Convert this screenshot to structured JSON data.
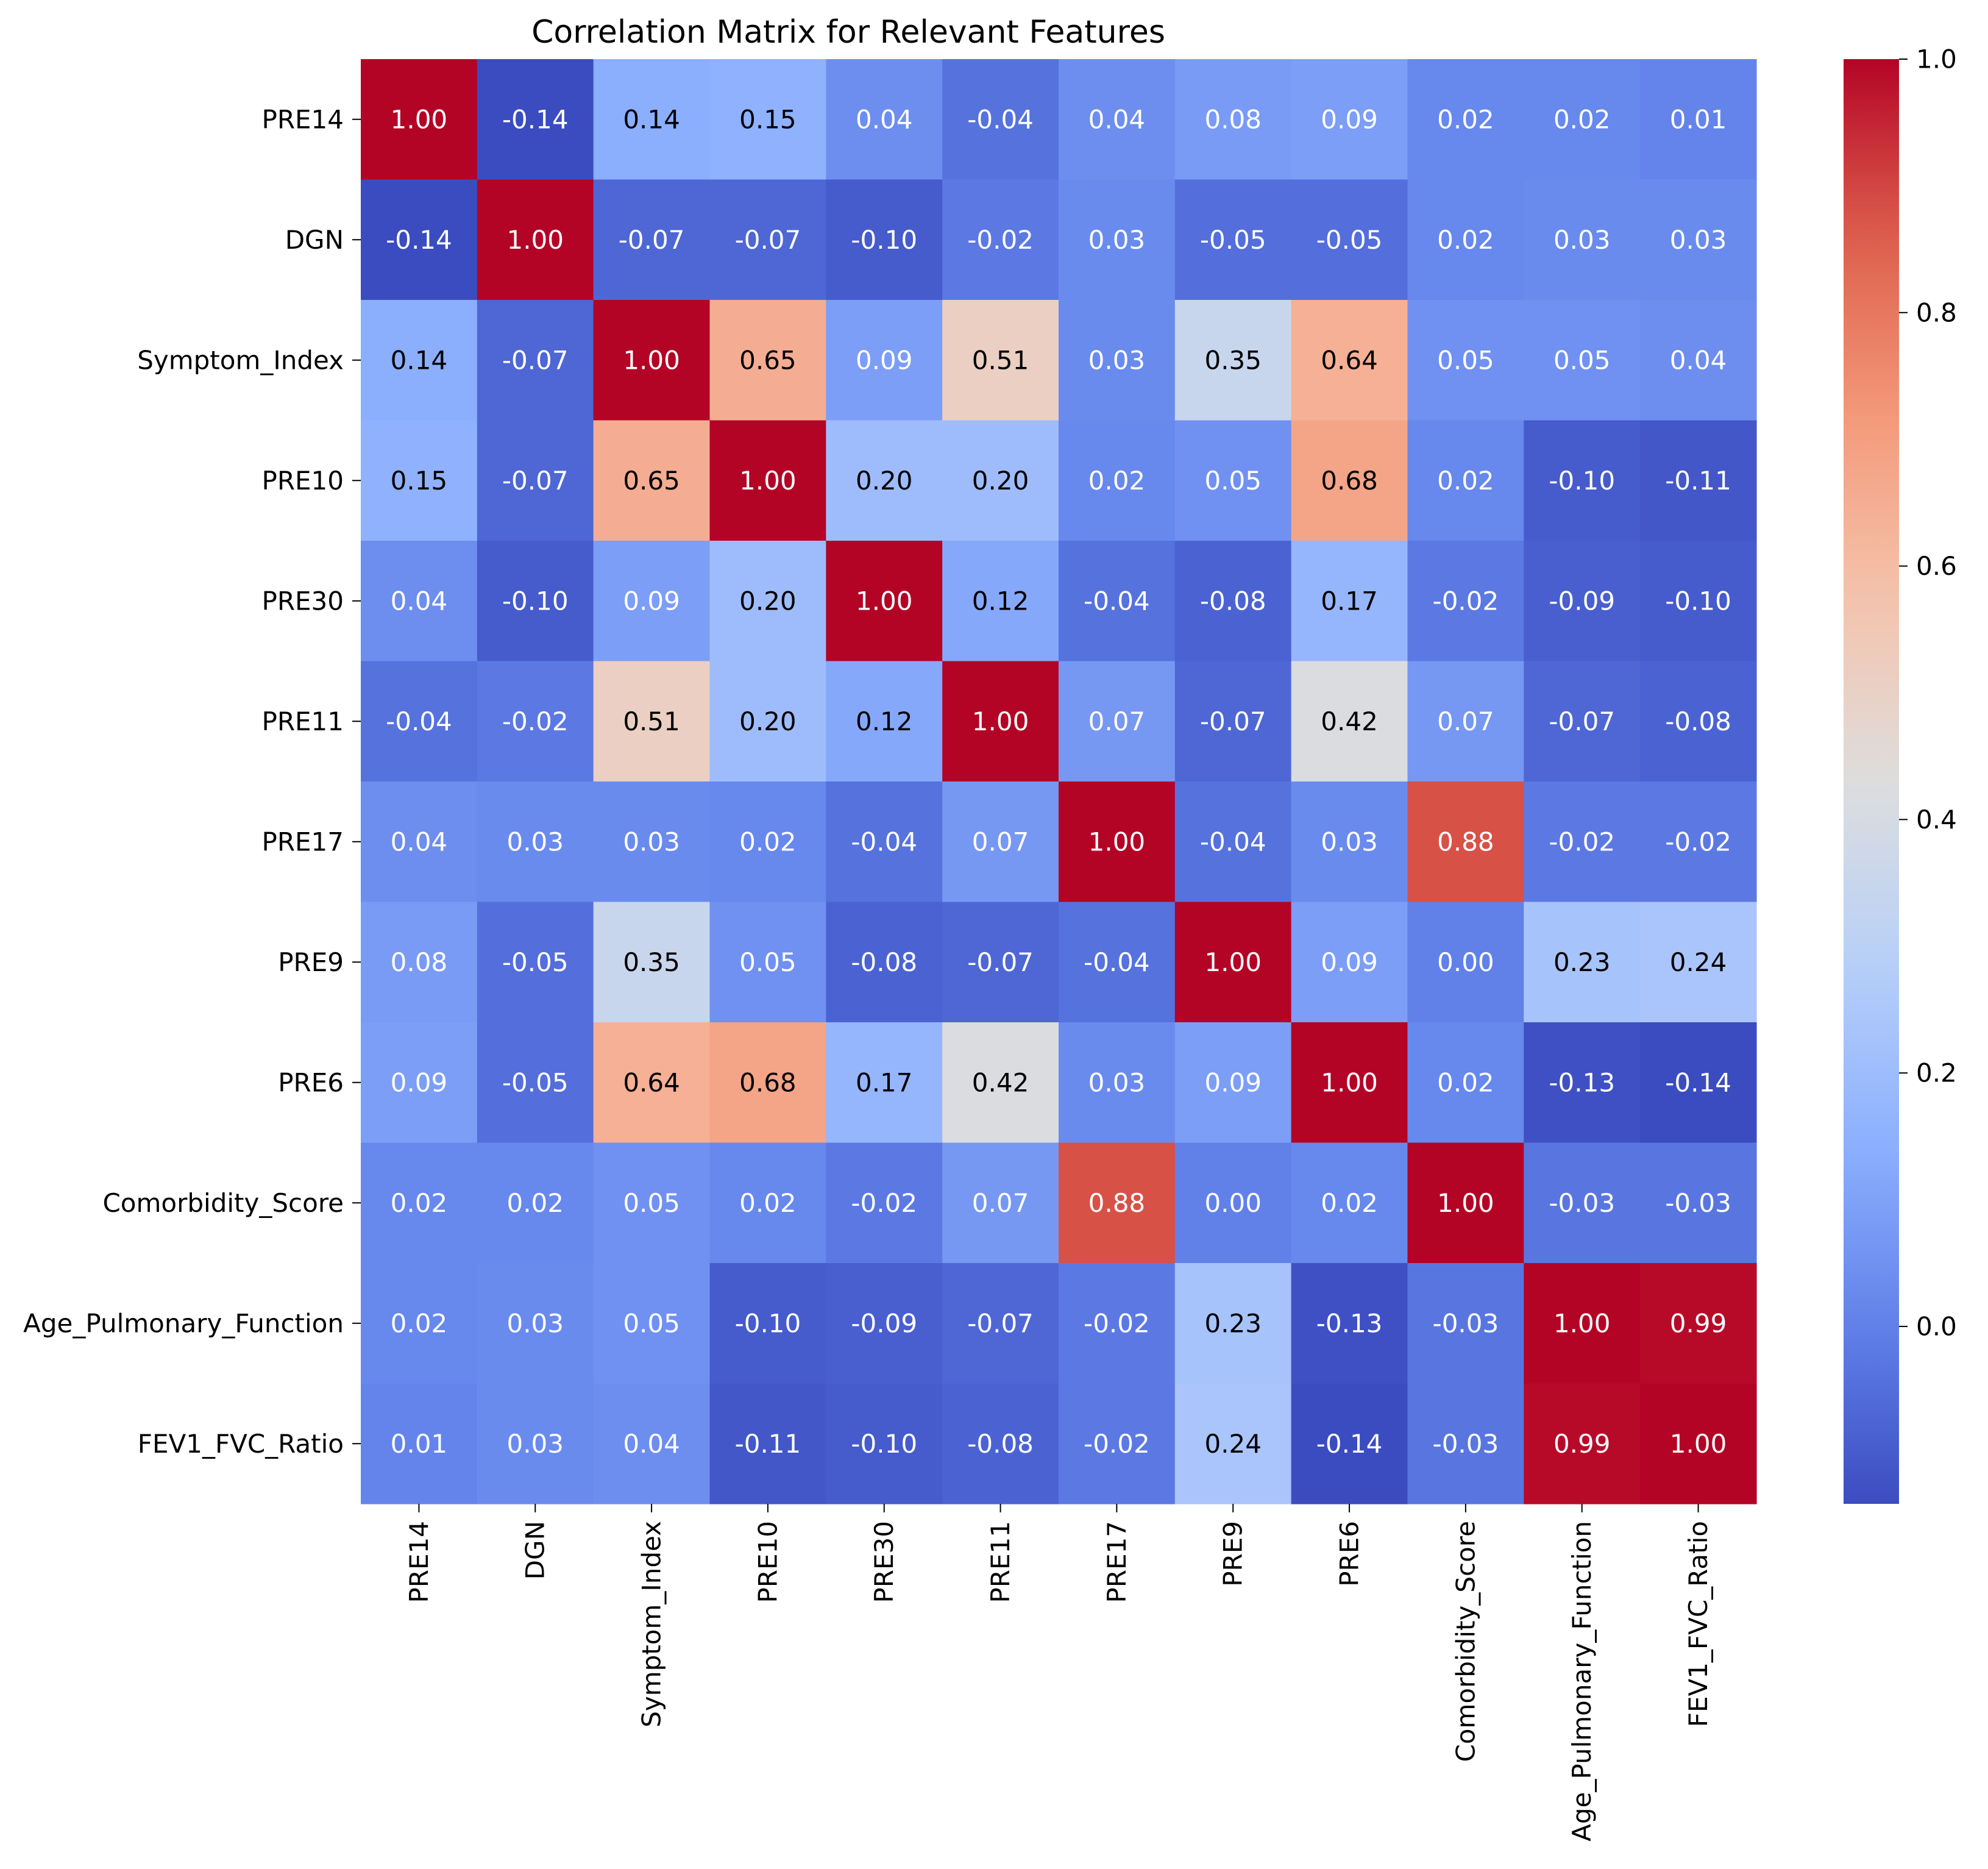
{
  "chart_data": {
    "type": "heatmap",
    "title": "Correlation Matrix for Relevant Features",
    "xlabel": "",
    "ylabel": "",
    "rows": [
      "PRE14",
      "DGN",
      "Symptom_Index",
      "PRE10",
      "PRE30",
      "PRE11",
      "PRE17",
      "PRE9",
      "PRE6",
      "Comorbidity_Score",
      "Age_Pulmonary_Function",
      "FEV1_FVC_Ratio"
    ],
    "columns": [
      "PRE14",
      "DGN",
      "Symptom_Index",
      "PRE10",
      "PRE30",
      "PRE11",
      "PRE17",
      "PRE9",
      "PRE6",
      "Comorbidity_Score",
      "Age_Pulmonary_Function",
      "FEV1_FVC_Ratio"
    ],
    "values": [
      [
        1.0,
        -0.14,
        0.14,
        0.15,
        0.04,
        -0.04,
        0.04,
        0.08,
        0.09,
        0.02,
        0.02,
        0.01
      ],
      [
        -0.14,
        1.0,
        -0.07,
        -0.07,
        -0.1,
        -0.02,
        0.03,
        -0.05,
        -0.05,
        0.02,
        0.03,
        0.03
      ],
      [
        0.14,
        -0.07,
        1.0,
        0.65,
        0.09,
        0.51,
        0.03,
        0.35,
        0.64,
        0.05,
        0.05,
        0.04
      ],
      [
        0.15,
        -0.07,
        0.65,
        1.0,
        0.2,
        0.2,
        0.02,
        0.05,
        0.68,
        0.02,
        -0.1,
        -0.11
      ],
      [
        0.04,
        -0.1,
        0.09,
        0.2,
        1.0,
        0.12,
        -0.04,
        -0.08,
        0.17,
        -0.02,
        -0.09,
        -0.1
      ],
      [
        -0.04,
        -0.02,
        0.51,
        0.2,
        0.12,
        1.0,
        0.07,
        -0.07,
        0.42,
        0.07,
        -0.07,
        -0.08
      ],
      [
        0.04,
        0.03,
        0.03,
        0.02,
        -0.04,
        0.07,
        1.0,
        -0.04,
        0.03,
        0.88,
        -0.02,
        -0.02
      ],
      [
        0.08,
        -0.05,
        0.35,
        0.05,
        -0.08,
        -0.07,
        -0.04,
        1.0,
        0.09,
        0.0,
        0.23,
        0.24
      ],
      [
        0.09,
        -0.05,
        0.64,
        0.68,
        0.17,
        0.42,
        0.03,
        0.09,
        1.0,
        0.02,
        -0.13,
        -0.14
      ],
      [
        0.02,
        0.02,
        0.05,
        0.02,
        -0.02,
        0.07,
        0.88,
        0.0,
        0.02,
        1.0,
        -0.03,
        -0.03
      ],
      [
        0.02,
        0.03,
        0.05,
        -0.1,
        -0.09,
        -0.07,
        -0.02,
        0.23,
        -0.13,
        -0.03,
        1.0,
        0.99
      ],
      [
        0.01,
        0.03,
        0.04,
        -0.11,
        -0.1,
        -0.08,
        -0.02,
        0.24,
        -0.14,
        -0.03,
        0.99,
        1.0
      ]
    ],
    "value_format": "2 decimals",
    "colormap": "coolwarm",
    "vmin": -0.14,
    "vmax": 1.0,
    "colorbar": {
      "ticks": [
        0.0,
        0.2,
        0.4,
        0.6,
        0.8,
        1.0
      ],
      "tick_labels": [
        "0.0",
        "0.2",
        "0.4",
        "0.6",
        "0.8",
        "1.0"
      ]
    },
    "annot_colors": {
      "light": "#ffffff",
      "dark": "#000000"
    },
    "grid": false,
    "legend": "colorbar right"
  }
}
